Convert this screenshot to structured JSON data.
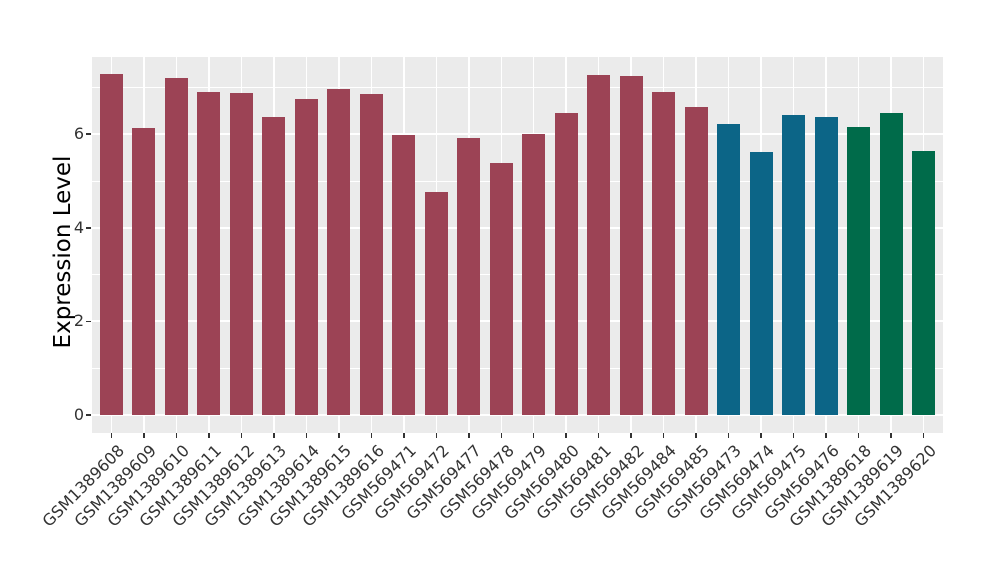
{
  "chart_data": {
    "type": "bar",
    "title": "",
    "xlabel": "",
    "ylabel": "Expression Level",
    "legend": "none",
    "grid": "on",
    "panel_bg": "#EBEBEB",
    "grid_color": "#FFFFFF",
    "axis_text_color": "#333333",
    "yticks": [
      0,
      2,
      4,
      6
    ],
    "minor_gridlines": [
      1,
      3,
      5,
      7
    ],
    "ylim": [
      -0.39,
      7.65
    ],
    "categories": [
      "GSM1389608",
      "GSM1389609",
      "GSM1389610",
      "GSM1389611",
      "GSM1389612",
      "GSM1389613",
      "GSM1389614",
      "GSM1389615",
      "GSM1389616",
      "GSM569471",
      "GSM569472",
      "GSM569477",
      "GSM569478",
      "GSM569479",
      "GSM569480",
      "GSM569481",
      "GSM569482",
      "GSM569484",
      "GSM569485",
      "GSM569473",
      "GSM569474",
      "GSM569475",
      "GSM569476",
      "GSM1389618",
      "GSM1389619",
      "GSM1389620"
    ],
    "values": [
      7.29,
      6.13,
      7.2,
      6.9,
      6.88,
      6.36,
      6.75,
      6.96,
      6.85,
      5.98,
      4.77,
      5.92,
      5.39,
      6.01,
      6.46,
      7.26,
      7.25,
      6.9,
      6.58,
      6.21,
      5.61,
      6.41,
      6.37,
      6.16,
      6.45,
      5.64
    ],
    "bar_colors": [
      "#9C4355",
      "#9C4355",
      "#9C4355",
      "#9C4355",
      "#9C4355",
      "#9C4355",
      "#9C4355",
      "#9C4355",
      "#9C4355",
      "#9C4355",
      "#9C4355",
      "#9C4355",
      "#9C4355",
      "#9C4355",
      "#9C4355",
      "#9C4355",
      "#9C4355",
      "#9C4355",
      "#9C4355",
      "#0C6587",
      "#0C6587",
      "#0C6587",
      "#0C6587",
      "#006B4A",
      "#006B4A",
      "#006B4A"
    ]
  }
}
